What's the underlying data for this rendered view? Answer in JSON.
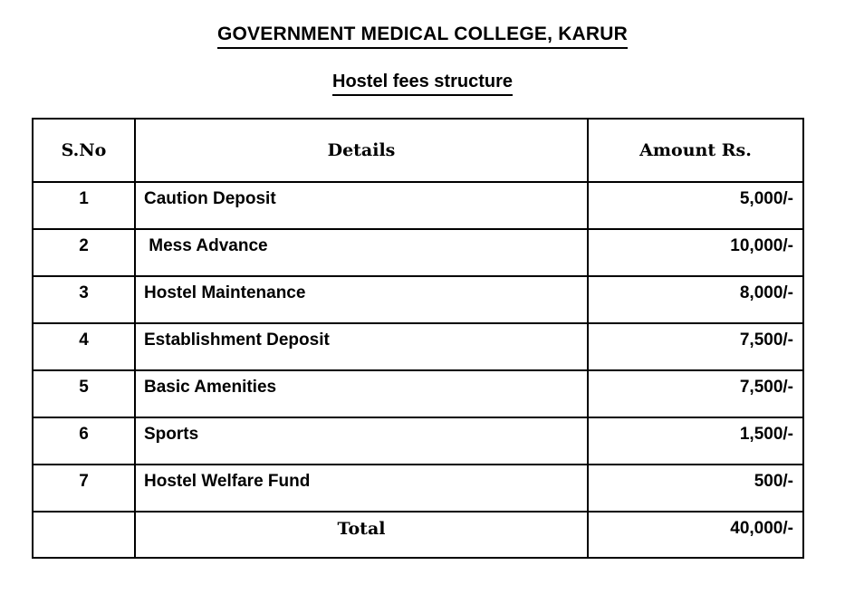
{
  "page": {
    "title": "GOVERNMENT MEDICAL COLLEGE, KARUR",
    "subtitle": "Hostel fees structure"
  },
  "colors": {
    "text": "#000000",
    "background": "#ffffff",
    "border": "#000000"
  },
  "table": {
    "headers": {
      "sno": "S.No",
      "details": "Details",
      "amount": "Amount Rs."
    },
    "rows": [
      {
        "sno": "1",
        "details": "Caution Deposit",
        "amount": "5,000/-"
      },
      {
        "sno": "2",
        "details": " Mess Advance",
        "amount": "10,000/-"
      },
      {
        "sno": "3",
        "details": "Hostel Maintenance",
        "amount": "8,000/-"
      },
      {
        "sno": "4",
        "details": "Establishment Deposit",
        "amount": "7,500/-"
      },
      {
        "sno": "5",
        "details": "Basic Amenities",
        "amount": "7,500/-"
      },
      {
        "sno": "6",
        "details": "Sports",
        "amount": "1,500/-"
      },
      {
        "sno": "7",
        "details": "Hostel Welfare Fund",
        "amount": "500/-"
      }
    ],
    "total": {
      "sno": "",
      "label": "Total",
      "amount": "40,000/-"
    }
  }
}
